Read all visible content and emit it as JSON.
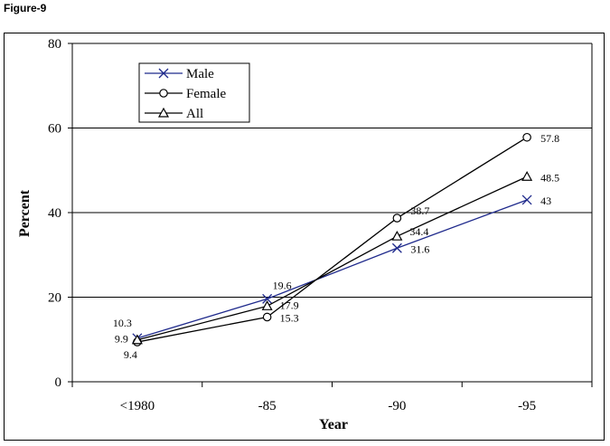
{
  "figure_label": "Figure-9",
  "chart_data": {
    "type": "line",
    "categories": [
      "<1980",
      "-85",
      "-90",
      "-95"
    ],
    "xlabel": "Year",
    "ylabel": "Percent",
    "ylim": [
      0,
      80
    ],
    "yticks": [
      0,
      20,
      40,
      60,
      80
    ],
    "grid": true,
    "legend_position": "top-left",
    "series": [
      {
        "name": "Male",
        "marker": "x",
        "color": "#1f2a8c",
        "values": [
          10.3,
          19.6,
          31.6,
          43
        ],
        "labels": [
          "10.3",
          "19.6",
          "31.6",
          "43"
        ]
      },
      {
        "name": "Female",
        "marker": "circle",
        "color": "#000000",
        "values": [
          9.4,
          15.3,
          38.7,
          57.8
        ],
        "labels": [
          "9.4",
          "15.3",
          "38.7",
          "57.8"
        ]
      },
      {
        "name": "All",
        "marker": "triangle",
        "color": "#000000",
        "values": [
          9.9,
          17.9,
          34.4,
          48.5
        ],
        "labels": [
          "9.9",
          "17.9",
          "34.4",
          "48.5"
        ]
      }
    ]
  }
}
